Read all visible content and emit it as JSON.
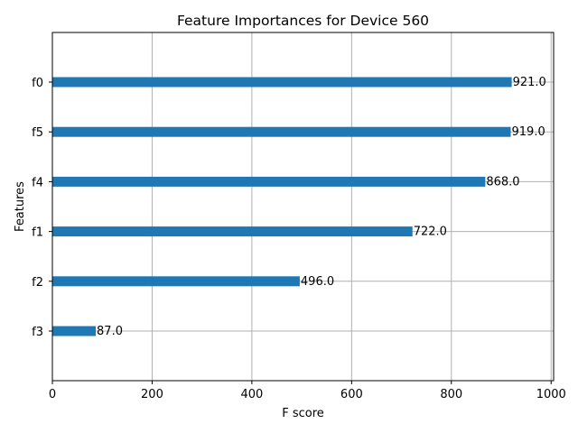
{
  "chart_data": {
    "type": "bar",
    "orientation": "horizontal",
    "title": "Feature Importances for Device 560",
    "xlabel": "F score",
    "ylabel": "Features",
    "categories": [
      "f0",
      "f5",
      "f4",
      "f1",
      "f2",
      "f3"
    ],
    "values": [
      921.0,
      919.0,
      868.0,
      722.0,
      496.0,
      87.0
    ],
    "data_labels": [
      "921.0",
      "919.0",
      "868.0",
      "722.0",
      "496.0",
      "87.0"
    ],
    "xlim": [
      0,
      1005
    ],
    "xticks": [
      0,
      200,
      400,
      600,
      800,
      1000
    ],
    "xtick_labels": [
      "0",
      "200",
      "400",
      "600",
      "800",
      "1000"
    ],
    "grid": true,
    "bar_color": "#1f77b4",
    "grid_color": "#b0b0b0"
  }
}
